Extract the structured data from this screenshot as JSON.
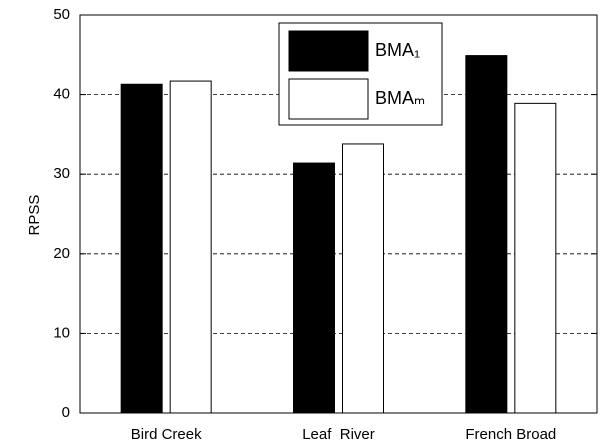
{
  "chart_data": {
    "type": "bar",
    "y_label": "RPSS",
    "categories": [
      "Bird Creek",
      "Leaf  River",
      "French Broad"
    ],
    "series": [
      {
        "name": "BMA₁",
        "color": "#000000",
        "values": [
          41.3,
          31.4,
          44.9
        ]
      },
      {
        "name": "BMAₘ",
        "color": "#ffffff",
        "values": [
          41.7,
          33.8,
          38.9
        ]
      }
    ],
    "ylim": [
      0,
      50
    ],
    "yticks": [
      0,
      10,
      20,
      30,
      40,
      50
    ],
    "grid": true,
    "legend": "top-center"
  }
}
